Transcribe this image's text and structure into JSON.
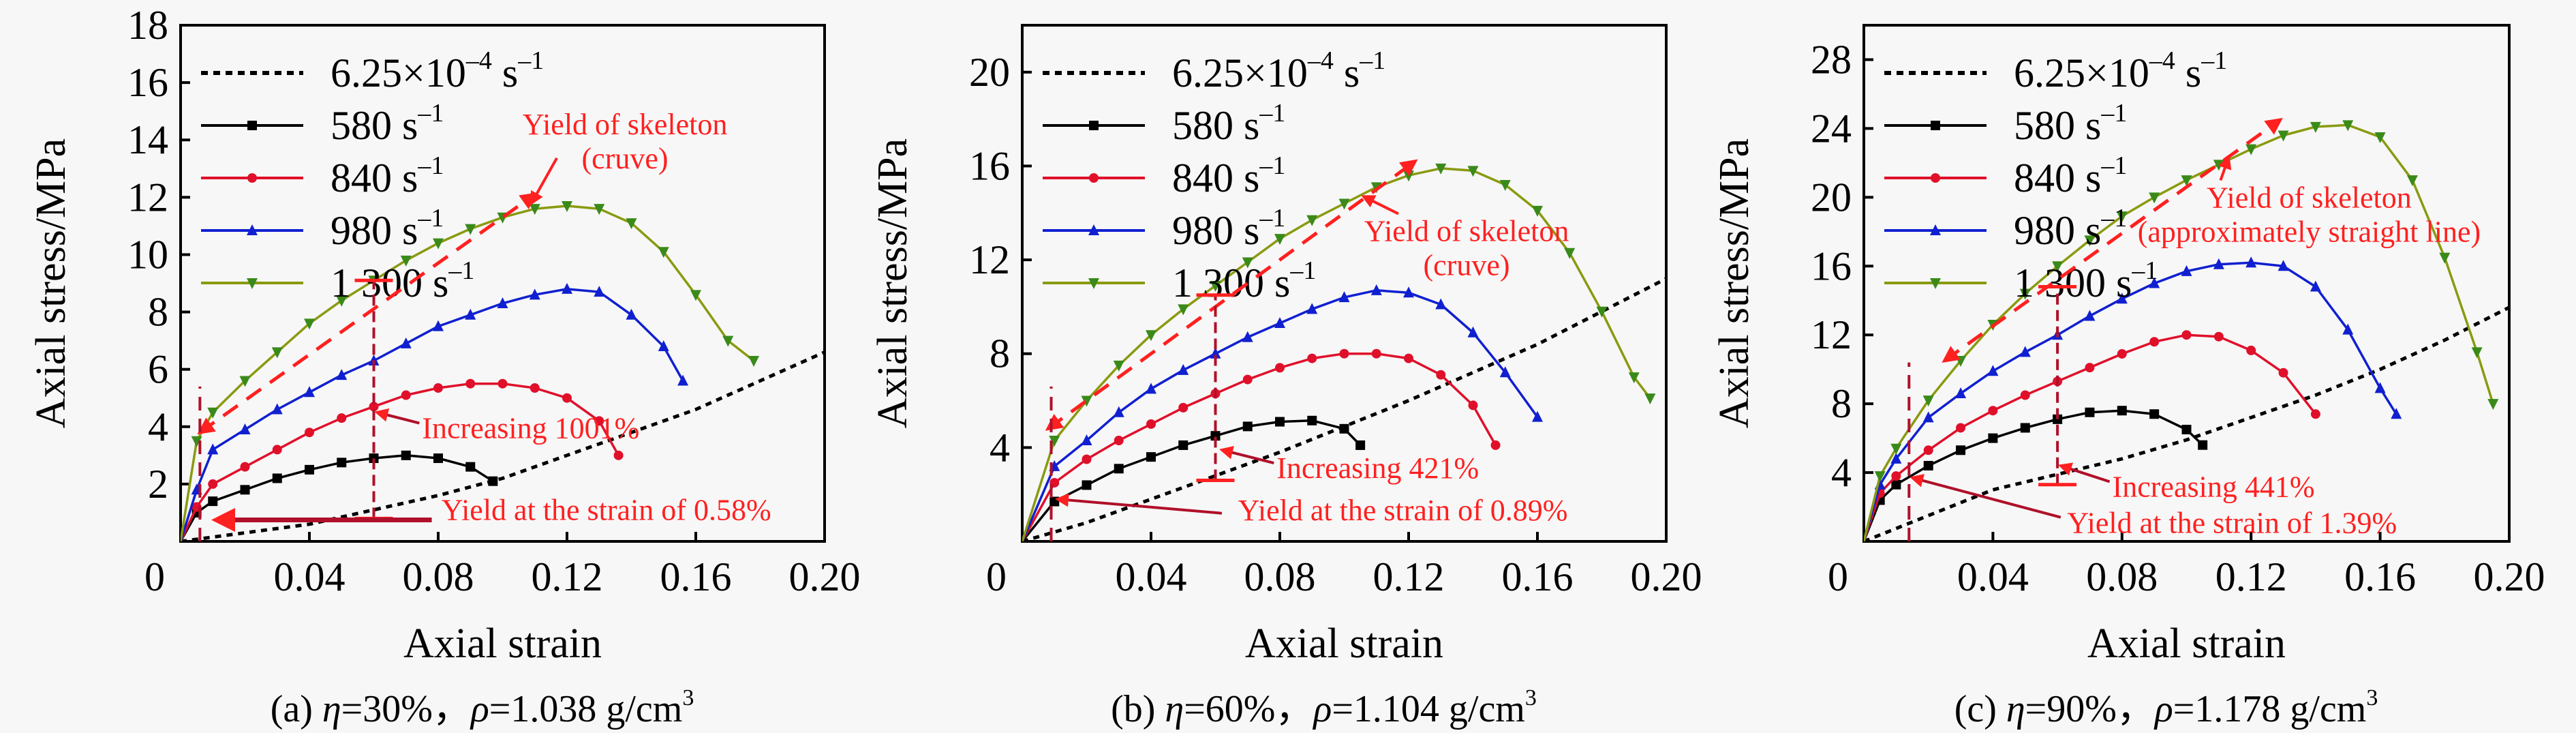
{
  "chart_data": [
    {
      "id": "a",
      "type": "line",
      "caption": {
        "prefix": "(a) ",
        "eta_symbol": "η",
        "eta_value": "=30%，",
        "rho_symbol": "ρ",
        "rho_value": "=1.038 g/cm",
        "sup": "3"
      },
      "xlabel": "Axial strain",
      "ylabel": "Axial stress/MPa",
      "xlim": [
        0,
        0.2
      ],
      "ylim": [
        0,
        18
      ],
      "xticks": [
        0.04,
        0.08,
        0.12,
        0.16,
        0.2
      ],
      "xtick_labels": [
        "0.04",
        "0.08",
        "0.12",
        "0.16",
        "0.20"
      ],
      "yticks": [
        2,
        4,
        6,
        8,
        10,
        12,
        14,
        16,
        18
      ],
      "ytick_labels": [
        "2",
        "4",
        "6",
        "8",
        "10",
        "12",
        "14",
        "16",
        "18"
      ],
      "origin_label": "0",
      "legend_position": "top-left",
      "series": [
        {
          "name": "6.25×10⁻⁴ s⁻¹",
          "base": "6.25×10",
          "exp1": "–4",
          "unit": " s",
          "exp2": "–1",
          "color": "#000000",
          "style": "dotted",
          "marker": "none",
          "x": [
            0,
            0.02,
            0.04,
            0.06,
            0.08,
            0.1,
            0.12,
            0.14,
            0.16,
            0.18,
            0.2
          ],
          "y": [
            0,
            0.3,
            0.6,
            1.1,
            1.6,
            2.2,
            3.0,
            3.8,
            4.6,
            5.6,
            6.6
          ]
        },
        {
          "name": "580 s⁻¹",
          "base": "580",
          "unit": " s",
          "exp2": "–1",
          "color": "#000000",
          "style": "solid",
          "marker": "square",
          "x": [
            0,
            0.005,
            0.01,
            0.02,
            0.03,
            0.04,
            0.05,
            0.06,
            0.07,
            0.08,
            0.09,
            0.097
          ],
          "y": [
            0,
            1.0,
            1.4,
            1.8,
            2.2,
            2.5,
            2.75,
            2.9,
            3.0,
            2.9,
            2.6,
            2.1
          ]
        },
        {
          "name": "840 s⁻¹",
          "base": "840",
          "unit": " s",
          "exp2": "–1",
          "color": "#e0102a",
          "style": "solid",
          "marker": "circle",
          "x": [
            0,
            0.005,
            0.01,
            0.02,
            0.03,
            0.04,
            0.05,
            0.06,
            0.07,
            0.08,
            0.09,
            0.1,
            0.11,
            0.12,
            0.13,
            0.136
          ],
          "y": [
            0,
            1.2,
            2.0,
            2.6,
            3.2,
            3.8,
            4.3,
            4.7,
            5.1,
            5.35,
            5.5,
            5.5,
            5.35,
            5.0,
            4.2,
            3.0
          ]
        },
        {
          "name": "980 s⁻¹",
          "base": "980",
          "unit": " s",
          "exp2": "–1",
          "color": "#1020d0",
          "style": "solid",
          "marker": "triangle-up",
          "x": [
            0,
            0.005,
            0.01,
            0.02,
            0.03,
            0.04,
            0.05,
            0.06,
            0.07,
            0.08,
            0.09,
            0.1,
            0.11,
            0.12,
            0.13,
            0.14,
            0.15,
            0.156
          ],
          "y": [
            0,
            1.8,
            3.2,
            3.9,
            4.6,
            5.2,
            5.8,
            6.3,
            6.9,
            7.5,
            7.9,
            8.3,
            8.6,
            8.8,
            8.7,
            7.9,
            6.8,
            5.6
          ]
        },
        {
          "name": "1 300 s⁻¹",
          "base": "1 300",
          "unit": " s",
          "exp2": "–1",
          "color": "#3a8a1a",
          "line_color": "#8a9a10",
          "style": "solid",
          "marker": "triangle-down",
          "x": [
            0,
            0.005,
            0.01,
            0.02,
            0.03,
            0.04,
            0.05,
            0.06,
            0.07,
            0.08,
            0.09,
            0.1,
            0.11,
            0.12,
            0.13,
            0.14,
            0.15,
            0.16,
            0.17,
            0.178
          ],
          "y": [
            0,
            3.5,
            4.5,
            5.6,
            6.6,
            7.6,
            8.4,
            9.1,
            9.8,
            10.4,
            10.9,
            11.3,
            11.6,
            11.7,
            11.6,
            11.1,
            10.1,
            8.6,
            7.0,
            6.3
          ]
        }
      ],
      "annotations": {
        "skeleton_line": {
          "x": [
            0.006,
            0.11
          ],
          "y": [
            3.8,
            12.1
          ]
        },
        "yield_vline": {
          "x": 0.006,
          "y": [
            0,
            5.4
          ]
        },
        "increase_bar": {
          "x": 0.06,
          "y": [
            0.8,
            9.1
          ]
        },
        "skeleton": {
          "line1": "Yield of skeleton",
          "line2": "(cruve)",
          "text_at": [
            0.138,
            14.2
          ],
          "arrow_to": [
            0.109,
            11.8
          ]
        },
        "increasing": {
          "text": "Increasing 1001%",
          "text_at": [
            0.075,
            3.6
          ],
          "arrow_to": [
            0.061,
            4.5
          ]
        },
        "yield": {
          "text": "Yield at the strain of 0.58%",
          "text_at": [
            0.081,
            0.75
          ],
          "arrow_from": [
            0.078,
            0.75
          ],
          "arrow_to": [
            0.011,
            0.75
          ]
        }
      }
    },
    {
      "id": "b",
      "type": "line",
      "caption": {
        "prefix": "(b) ",
        "eta_symbol": "η",
        "eta_value": "=60%，",
        "rho_symbol": "ρ",
        "rho_value": "=1.104 g/cm",
        "sup": "3"
      },
      "xlabel": "Axial strain",
      "ylabel": "Axial stress/MPa",
      "xlim": [
        0,
        0.2
      ],
      "ylim": [
        0,
        22
      ],
      "xticks": [
        0.04,
        0.08,
        0.12,
        0.16,
        0.2
      ],
      "xtick_labels": [
        "0.04",
        "0.08",
        "0.12",
        "0.16",
        "0.20"
      ],
      "yticks": [
        4,
        8,
        12,
        16,
        20
      ],
      "ytick_labels": [
        "4",
        "8",
        "12",
        "16",
        "20"
      ],
      "origin_label": "0",
      "legend_position": "top-left",
      "series": [
        {
          "name": "6.25×10⁻⁴ s⁻¹",
          "base": "6.25×10",
          "exp1": "–4",
          "unit": " s",
          "exp2": "–1",
          "color": "#000000",
          "style": "dotted",
          "marker": "none",
          "x": [
            0,
            0.02,
            0.04,
            0.06,
            0.08,
            0.1,
            0.12,
            0.14,
            0.16,
            0.18,
            0.2
          ],
          "y": [
            0,
            0.8,
            1.8,
            2.8,
            3.8,
            4.9,
            6.0,
            7.2,
            8.4,
            9.8,
            11.2
          ]
        },
        {
          "name": "580 s⁻¹",
          "base": "580",
          "unit": " s",
          "exp2": "–1",
          "color": "#000000",
          "style": "solid",
          "marker": "square",
          "x": [
            0,
            0.01,
            0.02,
            0.03,
            0.04,
            0.05,
            0.06,
            0.07,
            0.08,
            0.09,
            0.1,
            0.105
          ],
          "y": [
            0,
            1.7,
            2.4,
            3.1,
            3.6,
            4.1,
            4.5,
            4.9,
            5.1,
            5.15,
            4.8,
            4.1
          ]
        },
        {
          "name": "840 s⁻¹",
          "base": "840",
          "unit": " s",
          "exp2": "–1",
          "color": "#e0102a",
          "style": "solid",
          "marker": "circle",
          "x": [
            0,
            0.01,
            0.02,
            0.03,
            0.04,
            0.05,
            0.06,
            0.07,
            0.08,
            0.09,
            0.1,
            0.11,
            0.12,
            0.13,
            0.14,
            0.147
          ],
          "y": [
            0,
            2.5,
            3.5,
            4.3,
            5.0,
            5.7,
            6.3,
            6.9,
            7.4,
            7.8,
            8.0,
            8.0,
            7.8,
            7.1,
            5.8,
            4.1
          ]
        },
        {
          "name": "980 s⁻¹",
          "base": "980",
          "unit": " s",
          "exp2": "–1",
          "color": "#1020d0",
          "style": "solid",
          "marker": "triangle-up",
          "x": [
            0,
            0.01,
            0.02,
            0.03,
            0.04,
            0.05,
            0.06,
            0.07,
            0.08,
            0.09,
            0.1,
            0.11,
            0.12,
            0.13,
            0.14,
            0.15,
            0.16
          ],
          "y": [
            0,
            3.2,
            4.3,
            5.5,
            6.5,
            7.3,
            8.0,
            8.7,
            9.3,
            9.9,
            10.4,
            10.7,
            10.6,
            10.1,
            8.9,
            7.2,
            5.3
          ]
        },
        {
          "name": "1 300 s⁻¹",
          "base": "1 300",
          "unit": " s",
          "exp2": "–1",
          "color": "#3a8a1a",
          "line_color": "#8a9a10",
          "style": "solid",
          "marker": "triangle-down",
          "x": [
            0,
            0.01,
            0.02,
            0.03,
            0.04,
            0.05,
            0.06,
            0.07,
            0.08,
            0.09,
            0.1,
            0.11,
            0.12,
            0.13,
            0.14,
            0.15,
            0.16,
            0.17,
            0.18,
            0.19,
            0.195
          ],
          "y": [
            0,
            4.3,
            6.0,
            7.5,
            8.8,
            9.9,
            10.9,
            11.9,
            12.9,
            13.7,
            14.4,
            15.1,
            15.6,
            15.9,
            15.8,
            15.2,
            14.1,
            12.3,
            9.8,
            7.0,
            6.1
          ]
        }
      ],
      "annotations": {
        "skeleton_line": {
          "x": [
            0.008,
            0.122
          ],
          "y": [
            4.8,
            16.2
          ]
        },
        "yield_vline": {
          "x": 0.009,
          "y": [
            0,
            6.6
          ]
        },
        "increase_bar": {
          "x": 0.06,
          "y": [
            2.6,
            10.5
          ]
        },
        "skeleton": {
          "line1": "Yield of skeleton",
          "line2": "(cruve)",
          "text_at": [
            0.138,
            12.8
          ],
          "arrow_to": [
            0.106,
            14.7
          ]
        },
        "increasing": {
          "text": "Increasing 421%",
          "text_at": [
            0.079,
            2.7
          ],
          "arrow_to": [
            0.062,
            3.9
          ]
        },
        "yield": {
          "text": "Yield at the strain of 0.89%",
          "text_at": [
            0.067,
            0.9
          ],
          "arrow_from": [
            0.062,
            1.2
          ],
          "arrow_to": [
            0.011,
            1.8
          ]
        }
      }
    },
    {
      "id": "c",
      "type": "line",
      "caption": {
        "prefix": "(c) ",
        "eta_symbol": "η",
        "eta_value": "=90%，",
        "rho_symbol": "ρ",
        "rho_value": "=1.178 g/cm",
        "sup": "3"
      },
      "xlabel": "Axial strain",
      "ylabel": "Axial stress/MPa",
      "xlim": [
        0,
        0.2
      ],
      "ylim": [
        0,
        30
      ],
      "xticks": [
        0.04,
        0.08,
        0.12,
        0.16,
        0.2
      ],
      "xtick_labels": [
        "0.04",
        "0.08",
        "0.12",
        "0.16",
        "0.20"
      ],
      "yticks": [
        4,
        8,
        12,
        16,
        20,
        24,
        28
      ],
      "ytick_labels": [
        "4",
        "8",
        "12",
        "16",
        "20",
        "24",
        "28"
      ],
      "origin_label": "0",
      "legend_position": "top-left",
      "series": [
        {
          "name": "6.25×10⁻⁴ s⁻¹",
          "base": "6.25×10",
          "exp1": "–4",
          "unit": " s",
          "exp2": "–1",
          "color": "#000000",
          "style": "dotted",
          "marker": "none",
          "x": [
            0,
            0.02,
            0.04,
            0.06,
            0.08,
            0.1,
            0.12,
            0.14,
            0.16,
            0.18,
            0.2
          ],
          "y": [
            0,
            1.5,
            3.0,
            3.9,
            4.8,
            5.9,
            7.2,
            8.5,
            10.0,
            11.7,
            13.6
          ]
        },
        {
          "name": "580 s⁻¹",
          "base": "580",
          "unit": " s",
          "exp2": "–1",
          "color": "#000000",
          "style": "solid",
          "marker": "square",
          "x": [
            0,
            0.005,
            0.01,
            0.02,
            0.03,
            0.04,
            0.05,
            0.06,
            0.07,
            0.08,
            0.09,
            0.1,
            0.105
          ],
          "y": [
            0,
            2.4,
            3.3,
            4.4,
            5.3,
            6.0,
            6.6,
            7.1,
            7.5,
            7.6,
            7.4,
            6.5,
            5.6
          ]
        },
        {
          "name": "840 s⁻¹",
          "base": "840",
          "unit": " s",
          "exp2": "–1",
          "color": "#e0102a",
          "style": "solid",
          "marker": "circle",
          "x": [
            0,
            0.005,
            0.01,
            0.02,
            0.03,
            0.04,
            0.05,
            0.06,
            0.07,
            0.08,
            0.09,
            0.1,
            0.11,
            0.12,
            0.13,
            0.14
          ],
          "y": [
            0,
            2.8,
            3.8,
            5.3,
            6.6,
            7.6,
            8.5,
            9.3,
            10.1,
            10.9,
            11.6,
            12.0,
            11.9,
            11.1,
            9.8,
            7.4
          ]
        },
        {
          "name": "980 s⁻¹",
          "base": "980",
          "unit": " s",
          "exp2": "–1",
          "color": "#1020d0",
          "style": "solid",
          "marker": "triangle-up",
          "x": [
            0,
            0.005,
            0.01,
            0.02,
            0.03,
            0.04,
            0.05,
            0.06,
            0.07,
            0.08,
            0.09,
            0.1,
            0.11,
            0.12,
            0.13,
            0.14,
            0.15,
            0.16,
            0.165
          ],
          "y": [
            0,
            3.3,
            4.8,
            7.2,
            8.6,
            9.9,
            11.0,
            12.0,
            13.1,
            14.1,
            15.0,
            15.7,
            16.1,
            16.2,
            16.0,
            14.8,
            12.3,
            8.9,
            7.4
          ]
        },
        {
          "name": "1 300 s⁻¹",
          "base": "1 300",
          "unit": " s",
          "exp2": "–1",
          "color": "#3a8a1a",
          "line_color": "#8a9a10",
          "style": "solid",
          "marker": "triangle-down",
          "x": [
            0,
            0.005,
            0.01,
            0.02,
            0.03,
            0.04,
            0.05,
            0.06,
            0.07,
            0.08,
            0.09,
            0.1,
            0.11,
            0.12,
            0.13,
            0.14,
            0.15,
            0.16,
            0.17,
            0.18,
            0.19,
            0.195
          ],
          "y": [
            0,
            3.8,
            5.4,
            8.2,
            10.5,
            12.6,
            14.4,
            16.0,
            17.5,
            18.9,
            20.0,
            21.0,
            21.9,
            22.8,
            23.6,
            24.1,
            24.2,
            23.5,
            21.0,
            16.5,
            11.0,
            8.0
          ]
        }
      ],
      "annotations": {
        "skeleton_line": {
          "x": [
            0.025,
            0.129
          ],
          "y": [
            10.5,
            24.5
          ]
        },
        "yield_vline": {
          "x": 0.014,
          "y": [
            0,
            10.4
          ]
        },
        "increase_bar": {
          "x": 0.06,
          "y": [
            3.3,
            14.8
          ]
        },
        "skeleton": {
          "line1": "Yield of skeleton",
          "line2": "(approximately straight line)",
          "text_at": [
            0.138,
            19.4
          ],
          "arrow_to": [
            0.113,
            22.3
          ]
        },
        "increasing": {
          "text": "Increasing 441%",
          "text_at": [
            0.077,
            2.6
          ],
          "arrow_to": [
            0.061,
            4.4
          ]
        },
        "yield": {
          "text": "Yield at the strain of 1.39%",
          "text_at": [
            0.063,
            0.5
          ],
          "arrow_from": [
            0.061,
            1.4
          ],
          "arrow_to": [
            0.015,
            3.7
          ]
        }
      }
    }
  ]
}
